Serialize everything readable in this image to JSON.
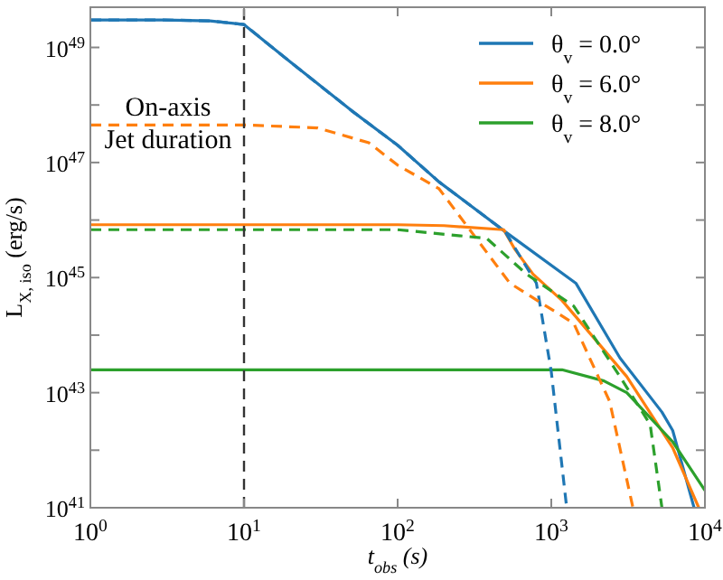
{
  "chart_data": {
    "type": "line",
    "xlabel": "t$_{obs}$ (s)",
    "ylabel": "L$_{X, iso}$ (erg/s)",
    "log": "xy",
    "xlim": [
      1,
      10000
    ],
    "ylim": [
      1e+41,
      5e+49
    ],
    "xticks": [
      {
        "value": 1,
        "label": "10$^{0}$"
      },
      {
        "value": 10,
        "label": "10$^{1}$"
      },
      {
        "value": 100,
        "label": "10$^{2}$"
      },
      {
        "value": 1000,
        "label": "10$^{3}$"
      },
      {
        "value": 10000,
        "label": "10$^{4}$"
      }
    ],
    "yticks": [
      {
        "value": 1e+41,
        "label": "10$^{41}$"
      },
      {
        "value": 1e+42,
        "label": null
      },
      {
        "value": 1e+43,
        "label": "10$^{43}$"
      },
      {
        "value": 1e+44,
        "label": null
      },
      {
        "value": 1e+45,
        "label": "10$^{45}$"
      },
      {
        "value": 1e+46,
        "label": null
      },
      {
        "value": 1e+47,
        "label": "10$^{47}$"
      },
      {
        "value": 1e+48,
        "label": null
      },
      {
        "value": 1e+49,
        "label": "10$^{49}$"
      }
    ],
    "legend": "top right",
    "series": [
      {
        "name": "θ$_{v}$ = 0.0°",
        "color": "#1f77b4",
        "line_style": "solid",
        "x": [
          1,
          3,
          6,
          10,
          20,
          50,
          100,
          186,
          500,
          1445,
          2800,
          5250,
          6170,
          8500
        ],
        "values": [
          3e+49,
          3e+49,
          2.9e+49,
          2.5e+49,
          5.6e+48,
          8e+47,
          2e+47,
          4.6e+46,
          6.3e+45,
          8e+44,
          4e+43,
          4.6e+42,
          2.2e+42,
          1e+41
        ]
      },
      {
        "name": "θ$_{v}$ = 6.0°",
        "color": "#ff7f0e",
        "line_style": "solid",
        "x": [
          1,
          100,
          200,
          490,
          575,
          760,
          1175,
          3100,
          6170,
          9120
        ],
        "values": [
          8.3e+45,
          8.3e+45,
          8e+45,
          6.8e+45,
          3.2e+45,
          1.15e+45,
          4e+44,
          1.9e+43,
          1.1e+42,
          1e+41
        ]
      },
      {
        "name": "θ$_{v}$ = 8.0°",
        "color": "#2ca02c",
        "line_style": "solid",
        "x": [
          1,
          1175,
          2200,
          3100,
          6170,
          10000
        ],
        "values": [
          2.5e+43,
          2.5e+43,
          1.6e+43,
          1e+43,
          1.4e+42,
          2e+41
        ]
      },
      {
        "color": "#1f77b4",
        "line_style": "dashed",
        "x": [
          1,
          3,
          6,
          10,
          20,
          50,
          100,
          186,
          500,
          800,
          1000,
          1260
        ],
        "values": [
          3e+49,
          3e+49,
          2.9e+49,
          2.5e+49,
          5.6e+48,
          8e+47,
          2e+47,
          4.6e+46,
          6.3e+45,
          8e+44,
          2.3e+43,
          1e+41
        ]
      },
      {
        "color": "#ff7f0e",
        "line_style": "dashed",
        "x": [
          1,
          10,
          30,
          65,
          100,
          186,
          537,
          1400,
          2400,
          3400
        ],
        "values": [
          4.5e+47,
          4.5e+47,
          4e+47,
          2.2e+47,
          9e+46,
          3.5e+46,
          8e+44,
          1.6e+44,
          7e+42,
          1e+41
        ]
      },
      {
        "color": "#2ca02c",
        "line_style": "dashed",
        "x": [
          1,
          100,
          380,
          690,
          1400,
          2800,
          4400,
          5250
        ],
        "values": [
          6.8e+45,
          6.8e+45,
          4.8e+45,
          1.15e+45,
          3.2e+44,
          1.9e+43,
          2.8e+42,
          1e+41
        ]
      }
    ],
    "ref_lines": [
      {
        "axis": "x",
        "value": 10,
        "color": "#333333",
        "line_style": "dashed"
      }
    ],
    "annotations": [
      "On-axis\nJet duration"
    ]
  }
}
